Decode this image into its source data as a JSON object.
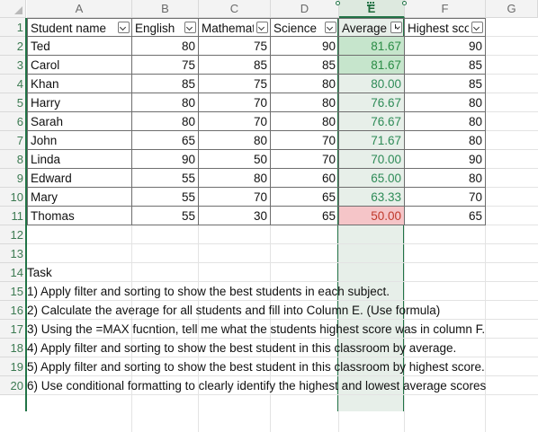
{
  "columns": [
    "A",
    "B",
    "C",
    "D",
    "E",
    "F",
    "G"
  ],
  "row_numbers": [
    "1",
    "2",
    "3",
    "4",
    "5",
    "6",
    "7",
    "8",
    "9",
    "10",
    "11",
    "12",
    "13",
    "14",
    "15",
    "16",
    "17",
    "18",
    "19",
    "20"
  ],
  "headers": [
    "Student name",
    "English",
    "Mathematics",
    "Science",
    "Average",
    "Highest score"
  ],
  "students": [
    {
      "name": "Ted",
      "english": "80",
      "math": "75",
      "science": "90",
      "average": "81.67",
      "highest": "90"
    },
    {
      "name": "Carol",
      "english": "75",
      "math": "85",
      "science": "85",
      "average": "81.67",
      "highest": "85"
    },
    {
      "name": "Khan",
      "english": "85",
      "math": "75",
      "science": "80",
      "average": "80.00",
      "highest": "85"
    },
    {
      "name": "Harry",
      "english": "80",
      "math": "70",
      "science": "80",
      "average": "76.67",
      "highest": "80"
    },
    {
      "name": "Sarah",
      "english": "80",
      "math": "70",
      "science": "80",
      "average": "76.67",
      "highest": "80"
    },
    {
      "name": "John",
      "english": "65",
      "math": "80",
      "science": "70",
      "average": "71.67",
      "highest": "80"
    },
    {
      "name": "Linda",
      "english": "90",
      "math": "50",
      "science": "70",
      "average": "70.00",
      "highest": "90"
    },
    {
      "name": "Edward",
      "english": "55",
      "math": "80",
      "science": "60",
      "average": "65.00",
      "highest": "80"
    },
    {
      "name": "Mary",
      "english": "55",
      "math": "70",
      "science": "65",
      "average": "63.33",
      "highest": "70"
    },
    {
      "name": "Thomas",
      "english": "55",
      "math": "30",
      "science": "65",
      "average": "50.00",
      "highest": "65"
    }
  ],
  "task_title": "Task",
  "tasks": [
    "1) Apply filter and sorting to show the best students in each subject.",
    "2) Calculate the average for all students and fill into Column E. (Use formula)",
    "3) Using the =MAX fucntion, tell me what the students highest score was in column F.",
    "4) Apply filter and sorting to show the best student in this classroom by average.",
    "5) Apply filter and sorting to show the best student in this classroom by highest score.",
    "6) Use conditional formatting to clearly identify the highest and lowest average scores"
  ],
  "selected_column": "E",
  "colors": {
    "accent": "#217346",
    "avg_high_fill": "#c6e5cc",
    "avg_high_text": "#2a8c45",
    "avg_low_fill": "#f5c5c8",
    "avg_low_text": "#c0392b",
    "avg_text": "#2e8b57"
  },
  "icons": [
    "filter-dropdown-icon",
    "sort-descending-filter-icon",
    "select-all-corner-icon"
  ]
}
